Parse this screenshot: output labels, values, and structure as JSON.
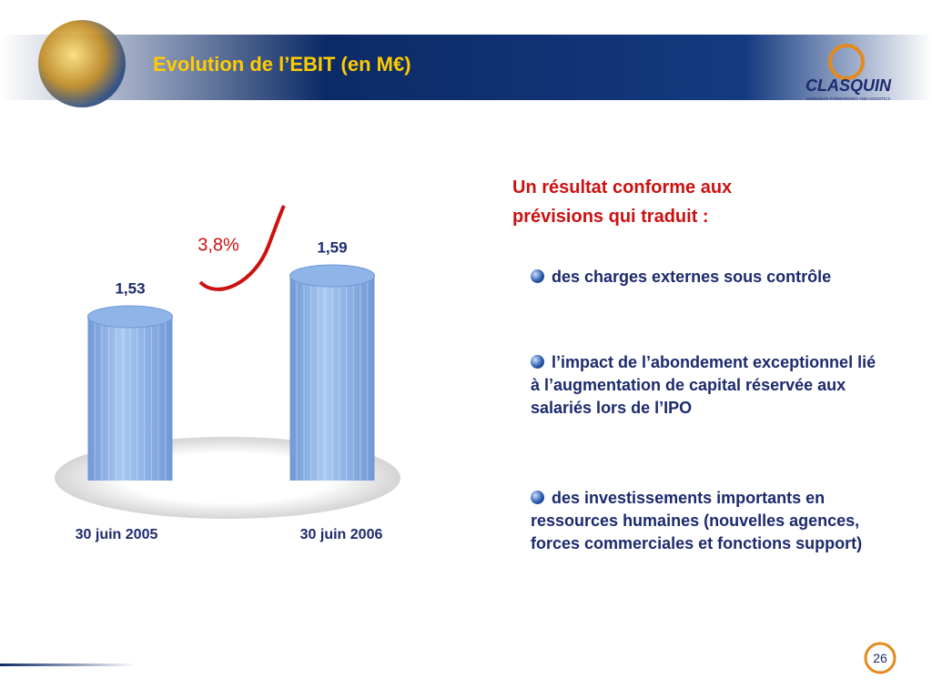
{
  "header": {
    "title": "Evolution de l’EBIT (en M€)",
    "logo": "CLASQUIN",
    "tagline": "OVERSEAS FORWARDING AND LOGISTICS"
  },
  "chart_data": {
    "type": "bar",
    "categories": [
      "30 juin 2005",
      "30 juin 2006"
    ],
    "values": [
      1.53,
      1.59
    ],
    "value_labels": [
      "1,53",
      "1,59"
    ],
    "color": "#8fb4e8",
    "annotation": "3,8%"
  },
  "text": {
    "heading": "Un résultat conforme aux prévisions qui traduit :",
    "bullets": [
      "des charges externes sous contrôle",
      "l’impact de l’abondement exceptionnel lié à l’augmentation de capital réservée aux salariés lors de l’IPO",
      "des investissements importants en ressources humaines (nouvelles agences, forces commerciales et fonctions support)"
    ]
  },
  "page_number": "26"
}
